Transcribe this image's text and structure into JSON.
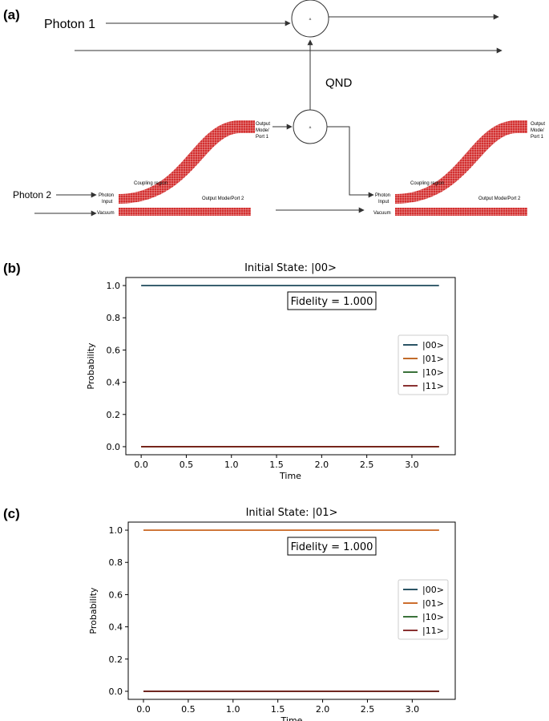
{
  "panels": {
    "a": {
      "label": "(a)"
    },
    "b": {
      "label": "(b)"
    },
    "c": {
      "label": "(c)"
    }
  },
  "diagram": {
    "photon1": "Photon 1",
    "photon2": "Photon 2",
    "qnd": "QND",
    "gate_symbol": "A",
    "coupling_region": "Coupling region",
    "photon_input": [
      "Photon",
      "Input"
    ],
    "vacuum": "Vacuum",
    "output_mode_port2": "Output Mode/Port 2",
    "output_mode_port1": [
      "Output",
      "Mode/",
      "Port 1"
    ],
    "waveguide_color": "#d32f2f"
  },
  "chart_data": [
    {
      "type": "line",
      "title": "Initial State: |00>",
      "xlabel": "Time",
      "ylabel": "Probability",
      "xlim": [
        -0.17,
        3.48
      ],
      "ylim": [
        -0.05,
        1.05
      ],
      "xticks": [
        "0.0",
        "0.5",
        "1.0",
        "1.5",
        "2.0",
        "2.5",
        "3.0"
      ],
      "yticks": [
        "0.0",
        "0.2",
        "0.4",
        "0.6",
        "0.8",
        "1.0"
      ],
      "grid": false,
      "legend_position": "center-right",
      "annotation": "Fidelity = 1.000",
      "x": [
        0.0,
        3.3
      ],
      "series": [
        {
          "name": "|00>",
          "color": "#0d3b4f",
          "values": [
            1.0,
            1.0
          ]
        },
        {
          "name": "|01>",
          "color": "#b8560b",
          "values": [
            0.0,
            0.0
          ]
        },
        {
          "name": "|10>",
          "color": "#1e5e1e",
          "values": [
            0.0,
            0.0
          ]
        },
        {
          "name": "|11>",
          "color": "#7a1414",
          "values": [
            0.0,
            0.0
          ]
        }
      ]
    },
    {
      "type": "line",
      "title": "Initial State: |01>",
      "xlabel": "Time",
      "ylabel": "Probability",
      "xlim": [
        -0.17,
        3.48
      ],
      "ylim": [
        -0.05,
        1.05
      ],
      "xticks": [
        "0.0",
        "0.5",
        "1.0",
        "1.5",
        "2.0",
        "2.5",
        "3.0"
      ],
      "yticks": [
        "0.0",
        "0.2",
        "0.4",
        "0.6",
        "0.8",
        "1.0"
      ],
      "grid": false,
      "legend_position": "center-right",
      "annotation": "Fidelity = 1.000",
      "x": [
        0.0,
        3.3
      ],
      "series": [
        {
          "name": "|00>",
          "color": "#0d3b4f",
          "values": [
            0.0,
            0.0
          ]
        },
        {
          "name": "|01>",
          "color": "#c55a11",
          "values": [
            1.0,
            1.0
          ]
        },
        {
          "name": "|10>",
          "color": "#1e5e1e",
          "values": [
            0.0,
            0.0
          ]
        },
        {
          "name": "|11>",
          "color": "#7a1414",
          "values": [
            0.0,
            0.0
          ]
        }
      ]
    }
  ]
}
